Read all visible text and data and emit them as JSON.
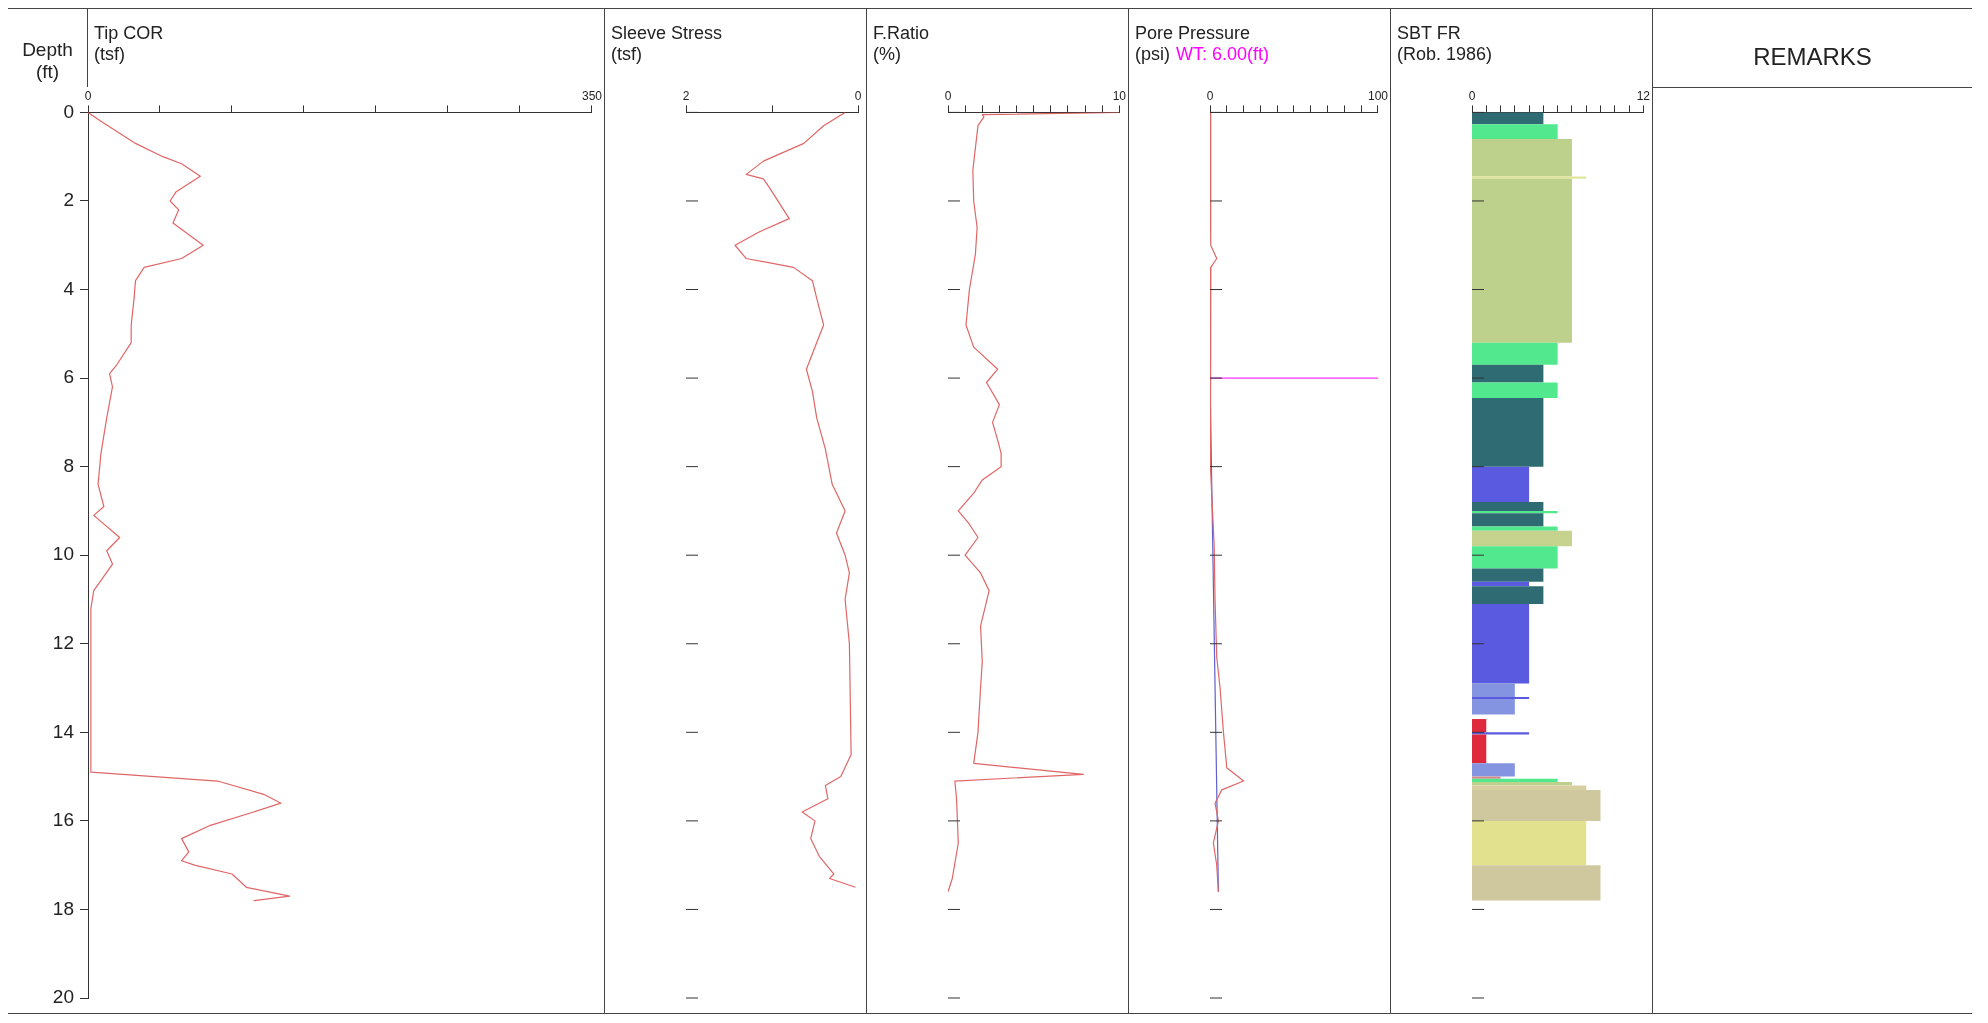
{
  "chart_data": [
    {
      "type": "line",
      "title": "Tip COR",
      "xlabel": "(tsf)",
      "ylabel": "Depth (ft)",
      "orientation": "horizontal",
      "xlim": [
        0,
        350
      ],
      "xticks": [
        0,
        {
          "value": 50,
          "label": null
        },
        {
          "value": 100,
          "label": null
        },
        {
          "value": 150,
          "label": null
        },
        {
          "value": 200,
          "label": null
        },
        {
          "value": 250,
          "label": null
        },
        {
          "value": 300,
          "label": null
        },
        350
      ],
      "ylim": [
        20,
        0
      ],
      "yticks": [
        0,
        2,
        4,
        6,
        8,
        10,
        12,
        14,
        16,
        18,
        20
      ],
      "color": "#e06666",
      "x": [
        0,
        0.2,
        0.7,
        1.0,
        1.16,
        1.44,
        1.8,
        2.0,
        2.2,
        2.5,
        3.0,
        3.3,
        3.5,
        3.8,
        4.2,
        4.8,
        5.2,
        5.7,
        5.9,
        6.2,
        6.9,
        7.7,
        8.4,
        8.9,
        9.1,
        9.6,
        9.9,
        10.2,
        10.8,
        11.2,
        14.9,
        15.1,
        15.4,
        15.6,
        15.8,
        16.1,
        16.4,
        16.7,
        16.9,
        17.0,
        17.2,
        17.5,
        17.7,
        17.8
      ],
      "values": [
        0,
        9,
        33,
        52,
        65,
        78,
        61,
        57,
        63,
        59,
        80,
        65,
        39,
        33,
        32,
        30,
        30,
        20,
        15,
        17,
        13,
        9,
        7,
        11,
        4,
        22,
        13,
        17,
        4,
        2,
        2,
        90,
        122,
        134,
        115,
        85,
        65,
        70,
        65,
        74,
        100,
        110,
        140,
        115
      ]
    },
    {
      "type": "line",
      "title": "Sleeve Stress",
      "xlabel": "(tsf)",
      "orientation": "horizontal",
      "xlim": [
        2,
        0
      ],
      "xticks": [
        2,
        {
          "value": 1,
          "label": null
        },
        0
      ],
      "ylim": [
        20,
        0
      ],
      "yticks": [
        0,
        2,
        4,
        6,
        8,
        10,
        12,
        14,
        16,
        18,
        20
      ],
      "tick_labels": "x",
      "color": "#e06666",
      "x": [
        0,
        0.3,
        0.7,
        1.1,
        1.4,
        1.5,
        1.7,
        2.4,
        2.7,
        3.0,
        3.3,
        3.5,
        3.8,
        4.2,
        4.8,
        5.3,
        5.8,
        6.3,
        6.9,
        7.6,
        8.4,
        9.0,
        9.5,
        10.0,
        10.4,
        11.0,
        12.0,
        14.5,
        15.0,
        15.2,
        15.5,
        15.8,
        16.0,
        16.4,
        16.8,
        17.2,
        17.3,
        17.5
      ],
      "values": [
        0.15,
        0.4,
        0.63,
        1.1,
        1.3,
        1.1,
        1.03,
        0.8,
        1.15,
        1.43,
        1.3,
        0.75,
        0.53,
        0.48,
        0.4,
        0.5,
        0.6,
        0.53,
        0.48,
        0.38,
        0.3,
        0.15,
        0.25,
        0.15,
        0.1,
        0.15,
        0.1,
        0.08,
        0.2,
        0.38,
        0.35,
        0.65,
        0.5,
        0.55,
        0.45,
        0.28,
        0.33,
        0.03
      ]
    },
    {
      "type": "line",
      "title": "F.Ratio",
      "xlabel": "(%)",
      "orientation": "horizontal",
      "xlim": [
        0,
        10
      ],
      "xticks": [
        0,
        {
          "value": 1,
          "label": null
        },
        {
          "value": 2,
          "label": null
        },
        {
          "value": 3,
          "label": null
        },
        {
          "value": 4,
          "label": null
        },
        {
          "value": 5,
          "label": null
        },
        {
          "value": 6,
          "label": null
        },
        {
          "value": 7,
          "label": null
        },
        {
          "value": 8,
          "label": null
        },
        {
          "value": 9,
          "label": null
        },
        10
      ],
      "ylim": [
        20,
        0
      ],
      "yticks": [
        0,
        2,
        4,
        6,
        8,
        10,
        12,
        14,
        16,
        18,
        20
      ],
      "tick_labels": "x",
      "color": "#e06666",
      "x": [
        0,
        0.05,
        0.1,
        0.3,
        0.8,
        1.3,
        2.0,
        2.6,
        3.2,
        4.0,
        4.8,
        5.3,
        5.8,
        6.1,
        6.6,
        7.0,
        7.4,
        7.7,
        8.0,
        8.3,
        8.6,
        9.0,
        9.3,
        9.6,
        10.0,
        10.4,
        10.8,
        11.6,
        12.4,
        13.0,
        14.0,
        14.7,
        14.95,
        15.1,
        15.5,
        16.5,
        17.3,
        17.6
      ],
      "values": [
        10,
        2.0,
        2.1,
        1.75,
        1.6,
        1.45,
        1.5,
        1.7,
        1.6,
        1.25,
        1.05,
        1.5,
        2.9,
        2.25,
        3.0,
        2.6,
        2.9,
        3.1,
        3.1,
        2.0,
        1.5,
        0.6,
        1.25,
        1.75,
        1.0,
        1.9,
        2.4,
        1.9,
        2.0,
        1.9,
        1.75,
        1.5,
        7.9,
        0.4,
        0.5,
        0.6,
        0.25,
        0
      ]
    },
    {
      "type": "line",
      "title": "Pore Pressure",
      "xlabel": "(psi)",
      "orientation": "horizontal",
      "xlim": [
        0,
        100
      ],
      "xticks": [
        0,
        {
          "value": 10,
          "label": null
        },
        {
          "value": 20,
          "label": null
        },
        {
          "value": 30,
          "label": null
        },
        {
          "value": 40,
          "label": null
        },
        {
          "value": 50,
          "label": null
        },
        {
          "value": 60,
          "label": null
        },
        {
          "value": 70,
          "label": null
        },
        {
          "value": 80,
          "label": null
        },
        {
          "value": 90,
          "label": null
        },
        100
      ],
      "ylim": [
        20,
        0
      ],
      "yticks": [
        0,
        2,
        4,
        6,
        8,
        10,
        12,
        14,
        16,
        18,
        20
      ],
      "tick_labels": "x",
      "ref_lines": [
        {
          "axis": "y",
          "value": 6,
          "label": "WT: 6.00(ft)",
          "color": "#ff00ff"
        }
      ],
      "series": [
        {
          "color": "#e06666",
          "x": [
            0,
            1,
            2,
            3.0,
            3.3,
            3.5,
            6,
            8,
            9,
            9.8,
            11,
            12.3,
            13,
            14,
            14.8,
            15.1,
            15.3,
            15.6,
            16.0,
            16.5,
            17,
            17.6
          ],
          "values": [
            0,
            0.5,
            0.3,
            0.5,
            4,
            0.5,
            0,
            0.5,
            1.5,
            2.5,
            3,
            4,
            6,
            8,
            10,
            20,
            7,
            3,
            5,
            2,
            4,
            5
          ]
        },
        {
          "color": "#6060d0",
          "x": [
            6,
            17.6
          ],
          "values": [
            0,
            5
          ]
        }
      ]
    },
    {
      "type": "histogram",
      "title": "SBT FR",
      "xlabel": "(Rob. 1986)",
      "orientation": "horizontal",
      "xlim": [
        0,
        12
      ],
      "xticks": [
        0,
        {
          "value": 1,
          "label": null
        },
        {
          "value": 2,
          "label": null
        },
        {
          "value": 3,
          "label": null
        },
        {
          "value": 4,
          "label": null
        },
        {
          "value": 5,
          "label": null
        },
        {
          "value": 6,
          "label": null
        },
        {
          "value": 7,
          "label": null
        },
        {
          "value": 8,
          "label": null
        },
        {
          "value": 9,
          "label": null
        },
        {
          "value": 10,
          "label": null
        },
        {
          "value": 11,
          "label": null
        },
        12
      ],
      "ylim": [
        20,
        0
      ],
      "yticks": [
        0,
        2,
        4,
        6,
        8,
        10,
        12,
        14,
        16,
        18,
        20
      ],
      "tick_labels": "x",
      "bins": [
        0,
        0.27,
        0.6,
        1.45,
        1.5,
        5.2,
        5.7,
        6.1,
        6.45,
        8.0,
        8.8,
        9.0,
        9.05,
        9.35,
        9.45,
        9.8,
        10.3,
        10.6,
        10.7,
        11.1,
        12.9,
        13.2,
        13.25,
        13.6,
        13.7,
        14.0,
        14.05,
        14.7,
        15.0,
        15.05,
        15.12,
        15.2,
        15.3,
        16.0,
        17.0,
        17.8
      ],
      "values": [
        5,
        6,
        7,
        8,
        7,
        6,
        5,
        6,
        5,
        4,
        5,
        6,
        5,
        6,
        7,
        6,
        5,
        4,
        5,
        4,
        3,
        4,
        3,
        null,
        1,
        4,
        1,
        3,
        2,
        6,
        7,
        8,
        9,
        8,
        9
      ],
      "colors": [
        "#2f6b72",
        "#52e88e",
        "#bdd18c",
        "#dfe69a",
        "#bdd18c",
        "#52e88e",
        "#2f6b72",
        "#52e88e",
        "#2f6b72",
        "#5a5ae0",
        "#2f6b72",
        "#52e88e",
        "#2f6b72",
        "#52e88e",
        "#c5d38f",
        "#52e88e",
        "#2f6b72",
        "#5a5ae0",
        "#2f6b72",
        "#5a5ae0",
        "#8494e0",
        "#5a5ae0",
        "#8494e0",
        null,
        "#e0283c",
        "#5a5ae0",
        "#e0283c",
        "#8494e0",
        "#d88a8a",
        "#52e88e",
        "#bdd18c",
        "#d8cfa0",
        "#cfc89e",
        "#e2e28e",
        "#cfc89e"
      ]
    },
    {
      "type": "other",
      "title": "REMARKS"
    }
  ]
}
